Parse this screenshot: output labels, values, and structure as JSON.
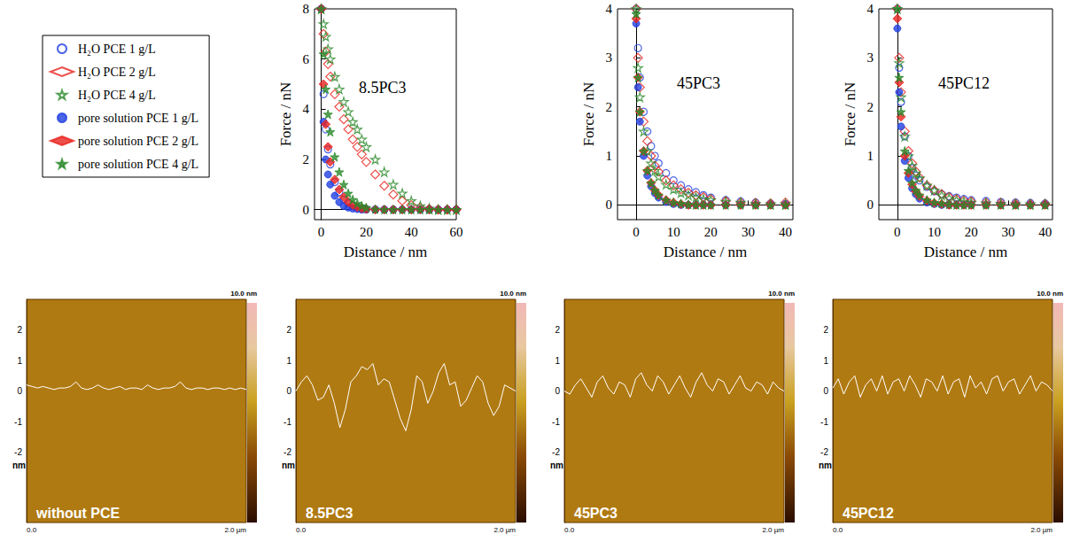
{
  "chart_data": [
    {
      "type": "scatter",
      "title": "8.5PC3",
      "x_label": "Distance / nm",
      "y_label": "Force / nN",
      "xlim": [
        -3,
        60
      ],
      "xticks": [
        0,
        20,
        40,
        60
      ],
      "ylim": [
        -0.4,
        8
      ],
      "yticks": [
        0,
        2,
        4,
        6,
        8
      ],
      "legend": "left",
      "x": [
        0,
        1,
        2,
        3,
        4,
        6,
        8,
        10,
        12,
        14,
        16,
        18,
        20,
        24,
        28,
        32,
        36,
        40,
        44,
        48,
        52,
        56,
        60
      ],
      "series": [
        {
          "name": "H₂O PCE 1 g/L",
          "color": "#2040e0",
          "marker": "open-circle",
          "values": [
            8,
            4.6,
            3.2,
            2.4,
            1.8,
            1.1,
            0.7,
            0.4,
            0.25,
            0.15,
            0.1,
            0.05,
            0.02,
            0,
            0,
            0,
            0,
            0,
            0,
            0,
            0,
            0,
            0
          ]
        },
        {
          "name": "H₂O PCE 2 g/L",
          "color": "#e8231e",
          "marker": "open-diamond",
          "values": [
            8,
            7,
            6.3,
            5.8,
            5.3,
            4.6,
            4.1,
            3.6,
            3.2,
            2.8,
            2.5,
            2.2,
            1.9,
            1.4,
            0.95,
            0.6,
            0.35,
            0.18,
            0.08,
            0.03,
            0,
            0,
            0
          ]
        },
        {
          "name": "H₂O PCE 4 g/L",
          "color": "#2a8a2a",
          "marker": "open-star",
          "values": [
            8,
            7.4,
            6.9,
            6.4,
            6,
            5.3,
            4.8,
            4.3,
            3.9,
            3.5,
            3.2,
            2.8,
            2.5,
            2,
            1.5,
            1,
            0.65,
            0.35,
            0.15,
            0.05,
            0,
            0,
            0
          ]
        },
        {
          "name": "pore solution PCE 1 g/L",
          "color": "#2040e0",
          "marker": "filled-circle",
          "values": [
            8,
            3.5,
            2,
            1.4,
            1,
            0.55,
            0.3,
            0.15,
            0.08,
            0.04,
            0.02,
            0,
            0,
            0,
            0,
            0,
            0,
            0,
            0,
            0,
            0,
            0,
            0
          ]
        },
        {
          "name": "pore solution PCE 2 g/L",
          "color": "#e8231e",
          "marker": "filled-diamond",
          "values": [
            8,
            5,
            3.4,
            2.5,
            1.9,
            1.2,
            0.8,
            0.5,
            0.3,
            0.18,
            0.1,
            0.05,
            0.02,
            0,
            0,
            0,
            0,
            0,
            0,
            0,
            0,
            0,
            0
          ]
        },
        {
          "name": "pore solution PCE 4 g/L",
          "color": "#2a8a2a",
          "marker": "filled-star",
          "values": [
            8,
            6.2,
            4.8,
            3.8,
            3.1,
            2.1,
            1.5,
            1,
            0.65,
            0.4,
            0.25,
            0.15,
            0.08,
            0.02,
            0,
            0,
            0,
            0,
            0,
            0,
            0,
            0,
            0
          ]
        }
      ]
    },
    {
      "type": "scatter",
      "title": "45PC3",
      "x_label": "Distance / nm",
      "y_label": "Force / nN",
      "xlim": [
        -5,
        42
      ],
      "xticks": [
        0,
        10,
        20,
        30,
        40
      ],
      "ylim": [
        -0.3,
        4
      ],
      "yticks": [
        0,
        1,
        2,
        3,
        4
      ],
      "legend": "left",
      "x": [
        0,
        0.5,
        1,
        2,
        3,
        4,
        5,
        6,
        8,
        10,
        12,
        14,
        16,
        18,
        20,
        24,
        28,
        32,
        36,
        40
      ],
      "series": [
        {
          "name": "H₂O PCE 1 g/L",
          "color": "#2040e0",
          "marker": "open-circle",
          "values": [
            4,
            3.2,
            2.6,
            1.9,
            1.5,
            1.2,
            1,
            0.85,
            0.65,
            0.5,
            0.4,
            0.32,
            0.26,
            0.2,
            0.15,
            0.1,
            0.07,
            0.05,
            0.03,
            0.02
          ]
        },
        {
          "name": "H₂O PCE 2 g/L",
          "color": "#e8231e",
          "marker": "open-diamond",
          "values": [
            4,
            3,
            2.4,
            1.7,
            1.3,
            1,
            0.8,
            0.68,
            0.5,
            0.4,
            0.32,
            0.25,
            0.2,
            0.16,
            0.12,
            0.08,
            0.05,
            0.04,
            0.03,
            0.05
          ]
        },
        {
          "name": "H₂O PCE 4 g/L",
          "color": "#2a8a2a",
          "marker": "open-star",
          "values": [
            4,
            2.8,
            2.2,
            1.5,
            1.1,
            0.85,
            0.7,
            0.58,
            0.42,
            0.32,
            0.25,
            0.2,
            0.16,
            0.12,
            0.1,
            0.07,
            0.05,
            0.03,
            0.02,
            0.02
          ]
        },
        {
          "name": "pore solution PCE 1 g/L",
          "color": "#2040e0",
          "marker": "filled-circle",
          "values": [
            3.7,
            2.4,
            1.7,
            1,
            0.6,
            0.38,
            0.24,
            0.15,
            0.06,
            0.02,
            0,
            0,
            0,
            0,
            0,
            0,
            0,
            0,
            0,
            0
          ]
        },
        {
          "name": "pore solution PCE 2 g/L",
          "color": "#e8231e",
          "marker": "filled-diamond",
          "values": [
            3.8,
            2.6,
            1.9,
            1.1,
            0.7,
            0.45,
            0.3,
            0.2,
            0.1,
            0.05,
            0.02,
            0,
            0,
            0,
            0,
            0,
            0,
            0,
            0,
            0
          ]
        },
        {
          "name": "pore solution PCE 4 g/L",
          "color": "#2a8a2a",
          "marker": "filled-star",
          "values": [
            3.9,
            2.6,
            1.9,
            1.1,
            0.7,
            0.45,
            0.3,
            0.2,
            0.1,
            0.05,
            0.03,
            0.01,
            0,
            0,
            0,
            0,
            0,
            0,
            0,
            0
          ]
        }
      ]
    },
    {
      "type": "scatter",
      "title": "45PC12",
      "x_label": "Distance / nm",
      "y_label": "Force / nN",
      "xlim": [
        -5,
        42
      ],
      "xticks": [
        0,
        10,
        20,
        30,
        40
      ],
      "ylim": [
        -0.3,
        4
      ],
      "yticks": [
        0,
        1,
        2,
        3,
        4
      ],
      "legend": "left",
      "x": [
        0,
        0.5,
        1,
        2,
        3,
        4,
        5,
        6,
        8,
        10,
        12,
        14,
        16,
        18,
        20,
        24,
        28,
        32,
        36,
        40
      ],
      "series": [
        {
          "name": "H₂O PCE 1 g/L",
          "color": "#2040e0",
          "marker": "open-circle",
          "values": [
            4,
            2.8,
            2.1,
            1.4,
            1,
            0.75,
            0.6,
            0.5,
            0.37,
            0.28,
            0.22,
            0.18,
            0.15,
            0.12,
            0.1,
            0.08,
            0.06,
            0.05,
            0.04,
            0.03
          ]
        },
        {
          "name": "H₂O PCE 2 g/L",
          "color": "#e8231e",
          "marker": "open-diamond",
          "values": [
            4,
            3,
            2.3,
            1.5,
            1.1,
            0.85,
            0.68,
            0.56,
            0.4,
            0.3,
            0.22,
            0.16,
            0.12,
            0.09,
            0.07,
            0.05,
            0.04,
            0.03,
            0.02,
            0.02
          ]
        },
        {
          "name": "H₂O PCE 4 g/L",
          "color": "#2a8a2a",
          "marker": "open-star",
          "values": [
            4,
            2.9,
            2.2,
            1.4,
            1,
            0.8,
            0.65,
            0.55,
            0.4,
            0.3,
            0.2,
            0.14,
            0.1,
            0.07,
            0.05,
            0.04,
            0.03,
            0.02,
            0.02,
            0.02
          ]
        },
        {
          "name": "pore solution PCE 1 g/L",
          "color": "#2040e0",
          "marker": "filled-circle",
          "values": [
            3.6,
            2.3,
            1.6,
            0.9,
            0.55,
            0.34,
            0.22,
            0.13,
            0.05,
            0.02,
            0,
            0,
            0,
            0,
            0,
            0,
            0,
            0,
            0,
            0
          ]
        },
        {
          "name": "pore solution PCE 2 g/L",
          "color": "#e8231e",
          "marker": "filled-diamond",
          "values": [
            3.8,
            2.5,
            1.8,
            1,
            0.65,
            0.42,
            0.28,
            0.18,
            0.09,
            0.04,
            0.02,
            0,
            0,
            0,
            0,
            0,
            0,
            0,
            0,
            0
          ]
        },
        {
          "name": "pore solution PCE 4 g/L",
          "color": "#2a8a2a",
          "marker": "filled-star",
          "values": [
            4,
            2.6,
            1.9,
            1.1,
            0.7,
            0.45,
            0.3,
            0.2,
            0.1,
            0.05,
            0.03,
            0.01,
            0,
            0,
            0,
            0,
            0,
            0,
            0,
            0
          ]
        }
      ]
    },
    {
      "type": "line",
      "title": "without PCE",
      "y_label": "nm",
      "colorbar_label": "10.0 nm",
      "color": "#ffffff",
      "xlim": [
        0,
        2
      ],
      "xticks": [
        {
          "value": 0,
          "label": "0.0"
        },
        {
          "value": 2,
          "label": "2.0 µm"
        }
      ],
      "ylim": [
        -4.3,
        3
      ],
      "yticks": [
        -2,
        -1,
        0,
        1,
        2
      ],
      "x": [
        0,
        0.05,
        0.1,
        0.15,
        0.2,
        0.25,
        0.3,
        0.35,
        0.4,
        0.45,
        0.5,
        0.55,
        0.6,
        0.65,
        0.7,
        0.75,
        0.8,
        0.85,
        0.9,
        0.95,
        1,
        1.05,
        1.1,
        1.15,
        1.2,
        1.25,
        1.3,
        1.35,
        1.4,
        1.45,
        1.5,
        1.55,
        1.6,
        1.65,
        1.7,
        1.75,
        1.8,
        1.85,
        1.9,
        1.95,
        2
      ],
      "values": [
        0.2,
        0.15,
        0.1,
        0.15,
        0.1,
        0.05,
        0.1,
        0.1,
        0.15,
        0.3,
        0.1,
        0.05,
        0.1,
        0.2,
        0.1,
        0.05,
        0.1,
        0.15,
        0.05,
        0.1,
        0.1,
        0.05,
        0.2,
        0.1,
        0.05,
        0.1,
        0.1,
        0.15,
        0.3,
        0.1,
        0.05,
        0.1,
        0.1,
        0.05,
        0.1,
        0.1,
        0.05,
        0.1,
        0.05,
        0.1,
        0.05
      ]
    },
    {
      "type": "line",
      "title": "8.5PC3",
      "y_label": "nm",
      "colorbar_label": "10.0 nm",
      "color": "#ffffff",
      "xlim": [
        0,
        2
      ],
      "xticks": [
        {
          "value": 0,
          "label": "0.0"
        },
        {
          "value": 2,
          "label": "2.0 µm"
        }
      ],
      "ylim": [
        -4.3,
        3
      ],
      "yticks": [
        -2,
        -1,
        0,
        1,
        2
      ],
      "x": [
        0,
        0.05,
        0.1,
        0.15,
        0.2,
        0.25,
        0.3,
        0.35,
        0.4,
        0.45,
        0.5,
        0.55,
        0.6,
        0.65,
        0.7,
        0.75,
        0.8,
        0.85,
        0.9,
        0.95,
        1,
        1.05,
        1.1,
        1.15,
        1.2,
        1.25,
        1.3,
        1.35,
        1.4,
        1.45,
        1.5,
        1.55,
        1.6,
        1.65,
        1.7,
        1.75,
        1.8,
        1.85,
        1.9,
        1.95,
        2
      ],
      "values": [
        0,
        0.3,
        0.5,
        0.2,
        -0.3,
        -0.2,
        0.2,
        -0.4,
        -1.2,
        -0.6,
        0.3,
        0.5,
        0.8,
        0.7,
        0.9,
        0.2,
        0.4,
        0.3,
        -0.3,
        -0.9,
        -1.3,
        -0.6,
        0.5,
        0.3,
        -0.4,
        0,
        0.6,
        0.9,
        0.2,
        0.3,
        -0.5,
        -0.3,
        0.1,
        0.5,
        0.3,
        -0.4,
        -0.8,
        -0.5,
        0.2,
        0.1,
        0
      ]
    },
    {
      "type": "line",
      "title": "45PC3",
      "y_label": "nm",
      "colorbar_label": "10.0 nm",
      "color": "#ffffff",
      "xlim": [
        0,
        2
      ],
      "xticks": [
        {
          "value": 0,
          "label": "0.0"
        },
        {
          "value": 2,
          "label": "2.0 µm"
        }
      ],
      "ylim": [
        -4.3,
        3
      ],
      "yticks": [
        -2,
        -1,
        0,
        1,
        2
      ],
      "x": [
        0,
        0.05,
        0.1,
        0.15,
        0.2,
        0.25,
        0.3,
        0.35,
        0.4,
        0.45,
        0.5,
        0.55,
        0.6,
        0.65,
        0.7,
        0.75,
        0.8,
        0.85,
        0.9,
        0.95,
        1,
        1.05,
        1.1,
        1.15,
        1.2,
        1.25,
        1.3,
        1.35,
        1.4,
        1.45,
        1.5,
        1.55,
        1.6,
        1.65,
        1.7,
        1.75,
        1.8,
        1.85,
        1.9,
        1.95,
        2
      ],
      "values": [
        0,
        -0.1,
        0.2,
        0.4,
        0.1,
        -0.2,
        0.3,
        0.5,
        0.1,
        -0.1,
        0.3,
        0.2,
        -0.2,
        0.4,
        0.6,
        0.2,
        0,
        0.5,
        0.3,
        -0.1,
        0.2,
        0.5,
        0.1,
        -0.2,
        0.3,
        0.6,
        0.2,
        0,
        0.4,
        0.3,
        -0.1,
        0.2,
        0.5,
        0.1,
        0,
        0.3,
        0.2,
        -0.1,
        0.3,
        0.1,
        0
      ]
    },
    {
      "type": "line",
      "title": "45PC12",
      "y_label": "nm",
      "colorbar_label": "10.0 nm",
      "color": "#ffffff",
      "xlim": [
        0,
        2
      ],
      "xticks": [
        {
          "value": 0,
          "label": "0.0"
        },
        {
          "value": 2,
          "label": "2.0 µm"
        }
      ],
      "ylim": [
        -4.3,
        3
      ],
      "yticks": [
        -2,
        -1,
        0,
        1,
        2
      ],
      "x": [
        0,
        0.05,
        0.1,
        0.15,
        0.2,
        0.25,
        0.3,
        0.35,
        0.4,
        0.45,
        0.5,
        0.55,
        0.6,
        0.65,
        0.7,
        0.75,
        0.8,
        0.85,
        0.9,
        0.95,
        1,
        1.05,
        1.1,
        1.15,
        1.2,
        1.25,
        1.3,
        1.35,
        1.4,
        1.45,
        1.5,
        1.55,
        1.6,
        1.65,
        1.7,
        1.75,
        1.8,
        1.85,
        1.9,
        1.95,
        2
      ],
      "values": [
        0.1,
        0.4,
        -0.1,
        0.3,
        0.5,
        -0.2,
        0.2,
        0.4,
        0,
        0.5,
        -0.1,
        0.3,
        0.4,
        0,
        0.5,
        0.2,
        -0.2,
        0.4,
        0.3,
        0,
        0.5,
        -0.1,
        0.3,
        0.4,
        -0.2,
        0.5,
        0.1,
        0.3,
        -0.1,
        0.4,
        0.5,
        0,
        0.3,
        0.4,
        -0.1,
        0.2,
        0.5,
        0,
        0.3,
        0.2,
        0
      ]
    }
  ]
}
